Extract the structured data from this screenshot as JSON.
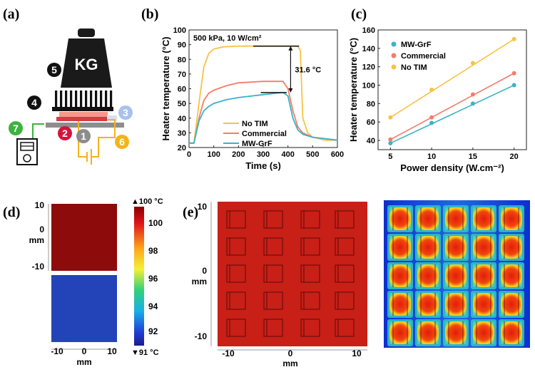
{
  "figure": {
    "panels": {
      "a": {
        "label": "(a)",
        "weight_text": "KG",
        "components": [
          {
            "n": "1",
            "color": "#8c8c8c"
          },
          {
            "n": "2",
            "color": "#d5143c"
          },
          {
            "n": "3",
            "color": "#a9c1ec"
          },
          {
            "n": "4",
            "color": "#111111"
          },
          {
            "n": "5",
            "color": "#111111"
          },
          {
            "n": "6",
            "color": "#f5b21a"
          },
          {
            "n": "7",
            "color": "#3db33d"
          }
        ]
      },
      "b": {
        "label": "(b)",
        "annotation": "500 kPa, 10 W/cm²",
        "delta_label": "31.6 °C"
      },
      "c": {
        "label": "(c)"
      },
      "d": {
        "label": "(d)",
        "colorbar": {
          "max_label": "▲100 °C",
          "min_label": "▼91 °C",
          "ticks": [
            "100",
            "98",
            "96",
            "94",
            "92"
          ]
        },
        "y_ticks": [
          "10",
          "0",
          "-10"
        ],
        "y_unit": "mm",
        "x_ticks": [
          "-10",
          "0",
          "10"
        ],
        "x_unit": "mm"
      },
      "e": {
        "label": "(e)",
        "y_ticks": [
          "10",
          "0",
          "-10"
        ],
        "y_unit": "mm",
        "x_ticks": [
          "-10",
          "0",
          "10"
        ],
        "x_unit": "mm"
      }
    },
    "colors": {
      "no_tim": "#f8c244",
      "commercial": "#f47c6a",
      "mwgrf": "#3ab3c8",
      "hot": "#c11d14",
      "dark_red": "#8b0a0a",
      "cold_blue": "#1e3fb5"
    }
  },
  "chart_data": [
    {
      "type": "line",
      "panel": "b",
      "title": "500 kPa, 10 W/cm²",
      "xlabel": "Time (s)",
      "ylabel": "Heater temperature (°C)",
      "xlim": [
        0,
        600
      ],
      "ylim": [
        20,
        100
      ],
      "xticks": [
        0,
        100,
        200,
        300,
        400,
        500,
        600
      ],
      "yticks": [
        20,
        30,
        40,
        50,
        60,
        70,
        80,
        90,
        100
      ],
      "legend": [
        "No TIM",
        "Commercial",
        "MW-GrF"
      ],
      "legend_position": "bottom-center",
      "series": [
        {
          "name": "No TIM",
          "x": [
            0,
            20,
            40,
            60,
            80,
            100,
            140,
            200,
            300,
            400,
            440,
            450,
            460,
            480,
            500,
            550,
            600
          ],
          "y": [
            23,
            23,
            50,
            75,
            84,
            87,
            88.5,
            89,
            89,
            89,
            89,
            86,
            40,
            30,
            27,
            25,
            25
          ]
        },
        {
          "name": "Commercial",
          "x": [
            0,
            20,
            40,
            60,
            80,
            100,
            150,
            200,
            300,
            380,
            400,
            420,
            440,
            460,
            500,
            550,
            600
          ],
          "y": [
            23,
            23,
            40,
            52,
            57,
            59,
            62,
            64,
            65,
            65,
            60,
            45,
            34,
            30,
            27,
            26,
            25
          ]
        },
        {
          "name": "MW-GrF",
          "x": [
            0,
            20,
            40,
            60,
            80,
            100,
            150,
            200,
            300,
            380,
            400,
            420,
            440,
            460,
            500,
            550,
            600
          ],
          "y": [
            23,
            23,
            38,
            45,
            48,
            50,
            52.5,
            54,
            56,
            57.5,
            55,
            40,
            32,
            29,
            27,
            26,
            25
          ]
        }
      ],
      "annotations": [
        {
          "text": "31.6 °C",
          "from_y": 89,
          "to_y": 57.4,
          "x": 330
        }
      ]
    },
    {
      "type": "line",
      "panel": "c",
      "xlabel": "Power density (W.cm⁻²)",
      "ylabel": "Heater temperature (°C)",
      "xlim": [
        3.5,
        21.5
      ],
      "ylim": [
        30,
        160
      ],
      "xticks": [
        5,
        10,
        15,
        20
      ],
      "yticks": [
        40,
        60,
        80,
        100,
        120,
        140,
        160
      ],
      "legend": [
        "MW-GrF",
        "Commercial",
        "No TIM"
      ],
      "legend_position": "top-left",
      "series": [
        {
          "name": "MW-GrF",
          "x": [
            5,
            10,
            15,
            20
          ],
          "y": [
            37,
            59,
            80,
            100
          ]
        },
        {
          "name": "Commercial",
          "x": [
            5,
            10,
            15,
            20
          ],
          "y": [
            41,
            65,
            90,
            113
          ]
        },
        {
          "name": "No TIM",
          "x": [
            5,
            10,
            15,
            20
          ],
          "y": [
            65,
            95,
            124,
            150
          ]
        }
      ]
    },
    {
      "type": "heatmap",
      "panel": "d",
      "xlabel": "mm",
      "ylabel": "mm",
      "colorbar_range": [
        91,
        100
      ],
      "colorbar_ticks": [
        100,
        98,
        96,
        94,
        92
      ],
      "maps": [
        {
          "name": "top",
          "value": 100.5
        },
        {
          "name": "bottom",
          "value": 91.5
        }
      ]
    },
    {
      "type": "heatmap",
      "panel": "e",
      "xlabel": "mm",
      "ylabel": "mm",
      "xticks": [
        -10,
        0,
        10
      ],
      "yticks": [
        10,
        0,
        -10
      ],
      "grid": {
        "rows": 5,
        "cols": 5
      }
    }
  ]
}
